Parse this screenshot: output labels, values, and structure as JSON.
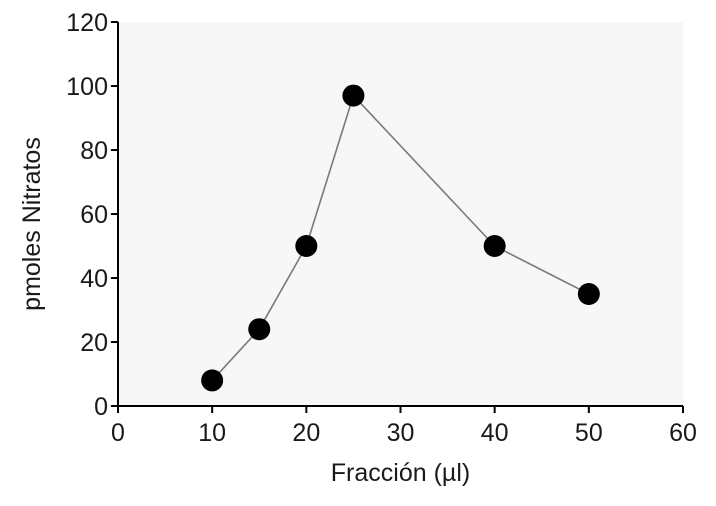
{
  "chart_data": {
    "type": "line",
    "title": "",
    "xlabel": "Fracción (µl)",
    "ylabel": "pmoles Nitratos",
    "xlim": [
      0,
      60
    ],
    "ylim": [
      0,
      120
    ],
    "x_ticks": [
      "0",
      "10",
      "20",
      "30",
      "40",
      "50",
      "60"
    ],
    "y_ticks": [
      "0",
      "20",
      "40",
      "60",
      "80",
      "100",
      "120"
    ],
    "grid": false,
    "legend": "none",
    "colors": {
      "background": "#ffffff",
      "plot_area": "#f7f7f7",
      "axis": "#000000",
      "line": "#7a7a7a",
      "marker": "#000000"
    },
    "series": [
      {
        "x": [
          10,
          15,
          20,
          25,
          40,
          50
        ],
        "y": [
          8,
          24,
          50,
          97,
          50,
          35
        ]
      }
    ]
  }
}
